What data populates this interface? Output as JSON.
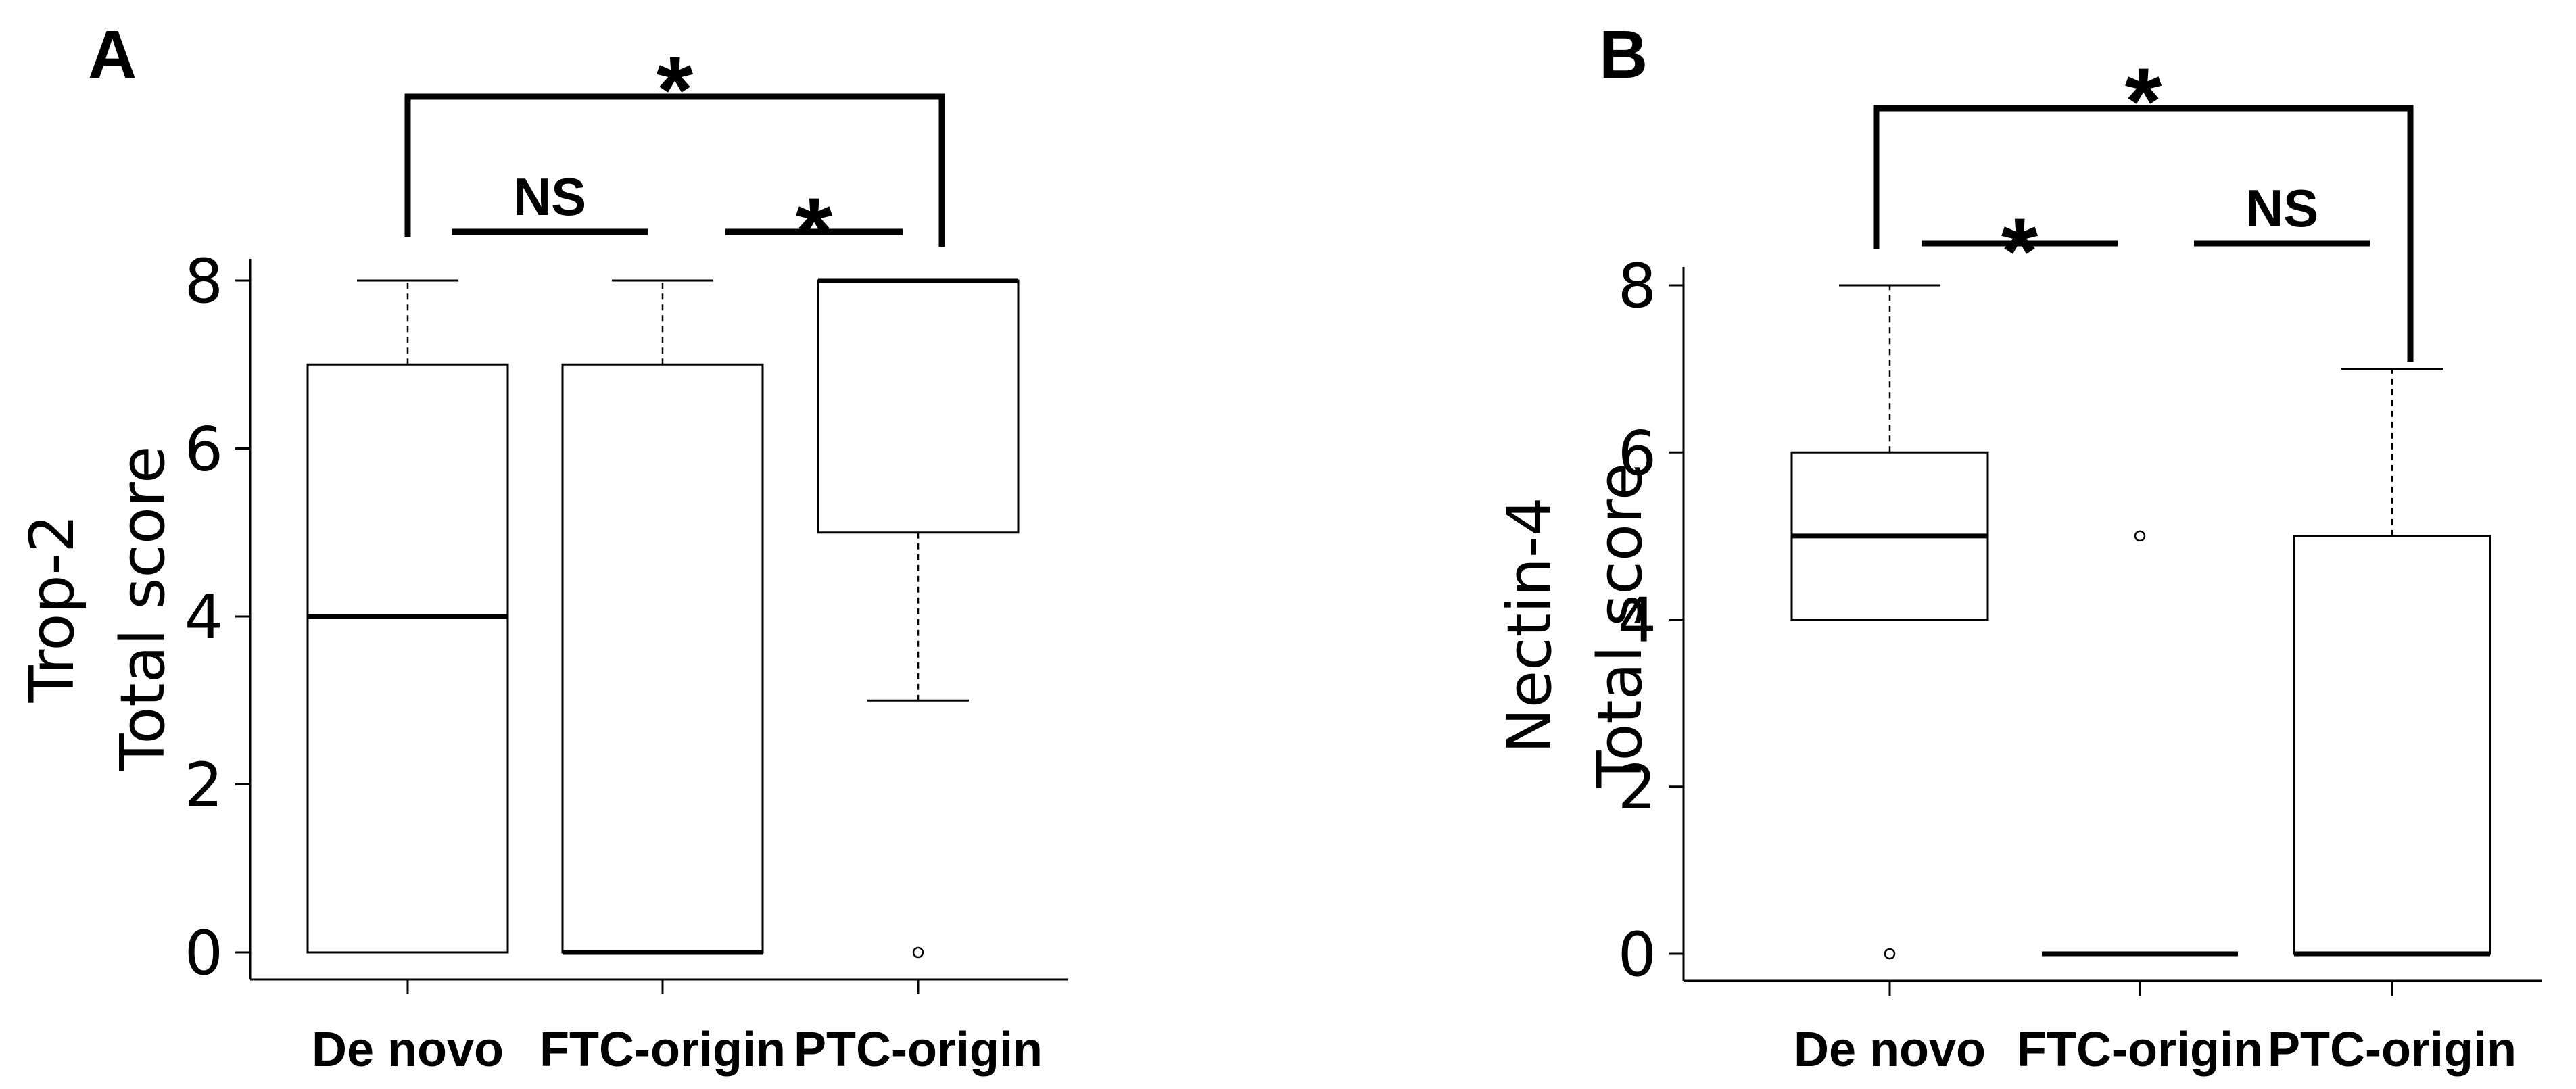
{
  "chart_data": [
    {
      "type": "boxplot",
      "panel_label": "A",
      "ylabel_lines": [
        "Trop-2",
        "Total score"
      ],
      "ylim": [
        0,
        8
      ],
      "yticks": [
        0,
        2,
        4,
        6,
        8
      ],
      "categories": [
        "De novo",
        "FTC-origin",
        "PTC-origin"
      ],
      "boxes": [
        {
          "q1": 0,
          "median": 4,
          "q3": 7,
          "whisker_low": 0,
          "whisker_high": 8,
          "outliers": []
        },
        {
          "q1": 0,
          "median": 0,
          "q3": 7,
          "whisker_low": 0,
          "whisker_high": 8,
          "outliers": []
        },
        {
          "q1": 5,
          "median": 8,
          "q3": 8,
          "whisker_low": 3,
          "whisker_high": 8,
          "outliers": [
            0
          ]
        }
      ],
      "significance": [
        {
          "from": 0,
          "to": 1,
          "label": "NS"
        },
        {
          "from": 1,
          "to": 2,
          "label": "*"
        },
        {
          "from": 0,
          "to": 2,
          "label": "*"
        }
      ]
    },
    {
      "type": "boxplot",
      "panel_label": "B",
      "ylabel_lines": [
        "Nectin-4",
        "Total score"
      ],
      "ylim": [
        0,
        8
      ],
      "yticks": [
        0,
        2,
        4,
        6,
        8
      ],
      "categories": [
        "De novo",
        "FTC-origin",
        "PTC-origin"
      ],
      "boxes": [
        {
          "q1": 4,
          "median": 5,
          "q3": 6,
          "whisker_low": 4,
          "whisker_high": 8,
          "outliers": [
            0
          ]
        },
        {
          "q1": 0,
          "median": 0,
          "q3": 0,
          "whisker_low": 0,
          "whisker_high": 0,
          "outliers": [
            5
          ]
        },
        {
          "q1": 0,
          "median": 0,
          "q3": 5,
          "whisker_low": 0,
          "whisker_high": 7,
          "outliers": []
        }
      ],
      "significance": [
        {
          "from": 0,
          "to": 1,
          "label": "*"
        },
        {
          "from": 1,
          "to": 2,
          "label": "NS"
        },
        {
          "from": 0,
          "to": 2,
          "label": "*"
        }
      ]
    }
  ]
}
